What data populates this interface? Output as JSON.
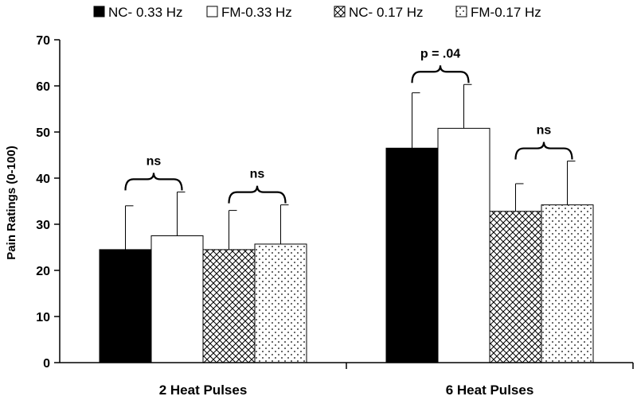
{
  "chart_data": {
    "type": "bar",
    "categories": [
      "2 Heat Pulses",
      "6 Heat Pulses"
    ],
    "series": [
      {
        "name": "NC- 0.33 Hz",
        "values": [
          24.5,
          46.5
        ],
        "errors": [
          9.5,
          12
        ],
        "pattern": "solid",
        "color": "#000000"
      },
      {
        "name": "FM-0.33 Hz",
        "values": [
          27.5,
          50.8
        ],
        "errors": [
          9.5,
          9.5
        ],
        "pattern": "open",
        "color": "#ffffff"
      },
      {
        "name": "NC- 0.17 Hz",
        "values": [
          24.5,
          32.8
        ],
        "errors": [
          8.5,
          6
        ],
        "pattern": "crosshatch",
        "color": "#ffffff"
      },
      {
        "name": "FM-0.17 Hz",
        "values": [
          25.7,
          34.2
        ],
        "errors": [
          8.5,
          9.5
        ],
        "pattern": "dots",
        "color": "#ffffff"
      }
    ],
    "ylabel": "Pain Ratings (0-100)",
    "xlabel": "",
    "ylim": [
      0,
      70
    ],
    "yticks": [
      0,
      10,
      20,
      30,
      40,
      50,
      60,
      70
    ],
    "grid": false,
    "legend_position": "top",
    "annotations": [
      {
        "text": "ns",
        "category": 0,
        "pair": [
          0,
          1
        ]
      },
      {
        "text": "ns",
        "category": 0,
        "pair": [
          2,
          3
        ]
      },
      {
        "text": "p = .04",
        "category": 1,
        "pair": [
          0,
          1
        ]
      },
      {
        "text": "ns",
        "category": 1,
        "pair": [
          2,
          3
        ]
      }
    ]
  }
}
